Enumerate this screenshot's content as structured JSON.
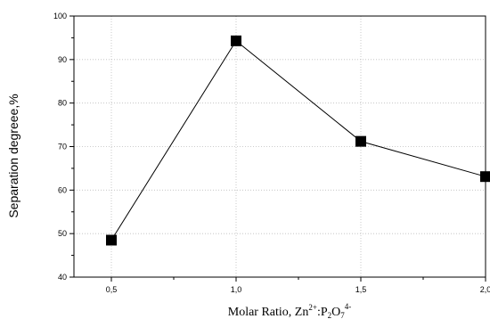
{
  "chart_data": {
    "type": "line",
    "title": "",
    "xlabel": "Molar Ratio, Zn2+:P2O74-",
    "xlabel_parts": {
      "base": "Molar Ratio, Zn",
      "sup1": "2+",
      "mid": ":P",
      "sub1": "2",
      "mid2": "O",
      "sub2": "7",
      "sup2": "4-"
    },
    "ylabel": "Separation degreee,%",
    "xlim": [
      0.5,
      2.0
    ],
    "ylim": [
      40,
      100
    ],
    "x_ticks": [
      0.5,
      1.0,
      1.5,
      2.0
    ],
    "x_tick_labels": [
      "0,5",
      "1,0",
      "1,5",
      "2,0"
    ],
    "y_ticks": [
      40,
      50,
      60,
      70,
      80,
      90,
      100
    ],
    "y_tick_labels": [
      "40",
      "50",
      "60",
      "70",
      "80",
      "90",
      "100"
    ],
    "grid": true,
    "marker": "square",
    "series": [
      {
        "x": [
          0.5,
          1.0,
          1.5,
          2.0
        ],
        "values": [
          48.5,
          94.3,
          71.2,
          63.1
        ]
      }
    ]
  }
}
